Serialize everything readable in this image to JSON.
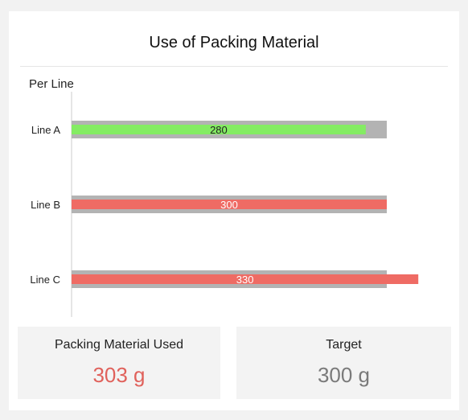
{
  "header": {
    "title": "Use of Packing Material"
  },
  "chart_data": {
    "type": "bar",
    "orientation": "horizontal",
    "title": "Per Line",
    "categories": [
      "Line A",
      "Line B",
      "Line C"
    ],
    "values": [
      280,
      300,
      330
    ],
    "target": 300,
    "bar_colors": [
      "#84ec63",
      "#ef6b64",
      "#ef6b64"
    ],
    "label_colors": [
      "#222222",
      "#ffffff",
      "#ffffff"
    ],
    "target_color": "#b3b3b3",
    "xlim": [
      0,
      330
    ],
    "grid": false,
    "legend": "none"
  },
  "kpis": {
    "used": {
      "label": "Packing Material Used",
      "value": "303 g",
      "color": "#e0615b"
    },
    "target": {
      "label": "Target",
      "value": "300 g",
      "color": "#7a7a7a"
    }
  }
}
